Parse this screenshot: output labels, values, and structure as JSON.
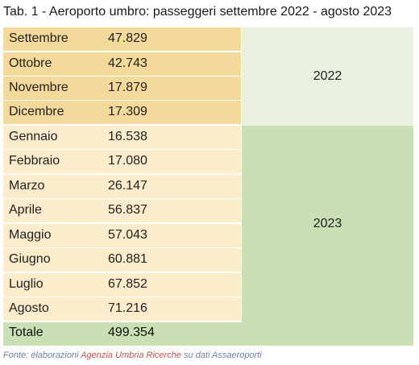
{
  "title": "Tab. 1 - Aeroporto umbro: passeggeri settembre 2022 - agosto 2023",
  "rows": [
    {
      "month": "Settembre",
      "value": "47.829"
    },
    {
      "month": "Ottobre",
      "value": "42.743"
    },
    {
      "month": "Novembre",
      "value": "17.879"
    },
    {
      "month": "Dicembre",
      "value": "17.309"
    },
    {
      "month": "Gennaio",
      "value": "16.538"
    },
    {
      "month": "Febbraio",
      "value": "17.080"
    },
    {
      "month": "Marzo",
      "value": "26.147"
    },
    {
      "month": "Aprile",
      "value": "56.837"
    },
    {
      "month": "Maggio",
      "value": "57.043"
    },
    {
      "month": "Giugno",
      "value": "60.881"
    },
    {
      "month": "Luglio",
      "value": "67.852"
    },
    {
      "month": "Agosto",
      "value": "71.216"
    }
  ],
  "years": {
    "first": "2022",
    "second": "2023"
  },
  "total": {
    "label": "Totale",
    "value": "499.354"
  },
  "source": {
    "prefix": "Fonte: elaborazioni ",
    "highlight": "Agenzia Umbria Ricerche",
    "suffix": " su dati Assaeroporti"
  },
  "colors": {
    "row_2022": "#f3d99a",
    "row_2023": "#fbeccb",
    "year_2022": "#e8f0de",
    "year_2023": "#c9e0b4",
    "source_text": "#6d7ea6",
    "source_highlight": "#c0504d"
  }
}
